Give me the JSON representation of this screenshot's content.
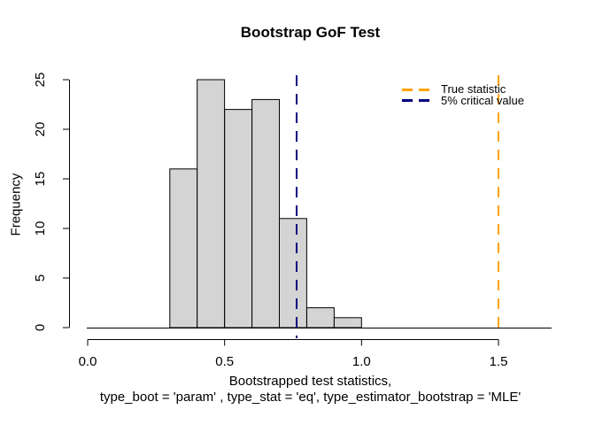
{
  "chart_data": {
    "type": "bar",
    "subtype": "histogram",
    "title": "Bootstrap GoF Test",
    "xlabel": [
      "Bootstrapped test statistics,",
      "type_boot = 'param' , type_stat = 'eq', type_estimator_bootstrap = 'MLE'"
    ],
    "ylabel": "Frequency",
    "bins": {
      "edges": [
        0.3,
        0.4,
        0.5,
        0.6,
        0.7,
        0.8,
        0.9,
        1.0
      ],
      "counts": [
        16,
        25,
        22,
        23,
        11,
        2,
        1
      ]
    },
    "x_ticks": {
      "values": [
        0,
        0.5,
        1.0,
        1.5
      ],
      "labels": [
        "0.0",
        "0.5",
        "1.0",
        "1.5"
      ]
    },
    "y_ticks": {
      "values": [
        0,
        5,
        10,
        15,
        20,
        25
      ],
      "labels": [
        "0",
        "5",
        "10",
        "15",
        "20",
        "25"
      ]
    },
    "xlim": [
      0,
      1.7
    ],
    "ylim": [
      0,
      25
    ],
    "grid": false,
    "bar_fill": "#D4D4D4",
    "bar_stroke": "#000000",
    "axis_color": "#000000",
    "vlines": [
      {
        "id": "true-statistic",
        "value": 1.5,
        "color": "#FFA500",
        "style": "dashed",
        "label": "True statistic"
      },
      {
        "id": "critical-value-5pct",
        "value": 0.763,
        "color": "#000080",
        "style": "dashed",
        "label": "5% critical value"
      }
    ],
    "legend": {
      "position": "top-right",
      "box": false,
      "items": [
        {
          "label": "True statistic",
          "color": "#FFA500"
        },
        {
          "label": "5% critical value",
          "color": "#000080"
        }
      ]
    }
  }
}
